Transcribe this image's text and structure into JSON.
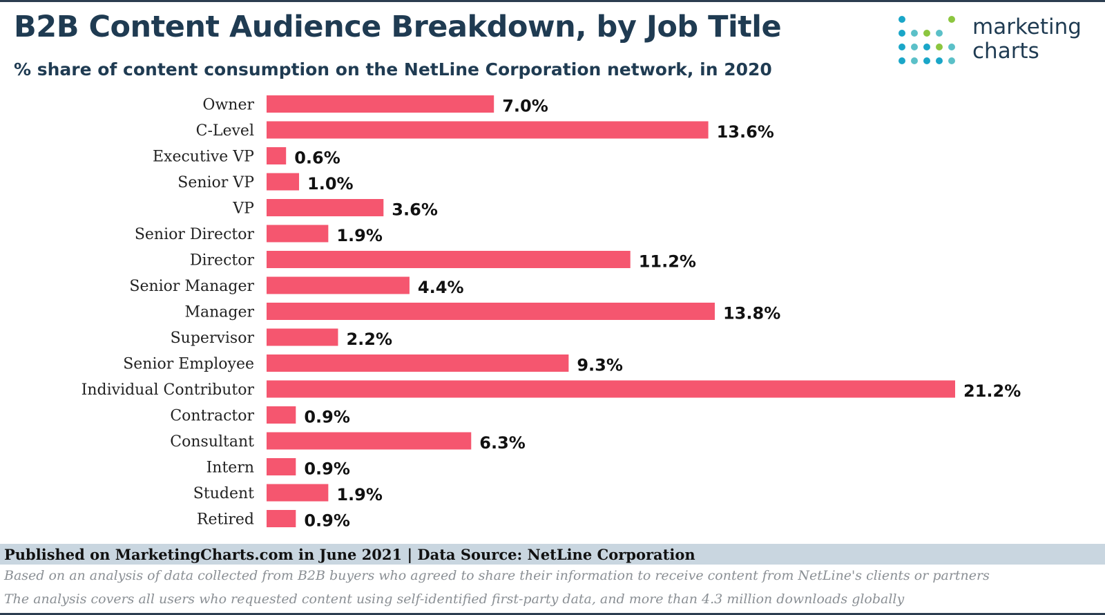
{
  "header": {
    "title": "B2B Content Audience Breakdown, by Job Title",
    "subtitle": "% share of content consumption on the NetLine Corporation network, in 2020"
  },
  "logo": {
    "line1": "marketing",
    "line2": "charts"
  },
  "colors": {
    "bar": "#f5566f",
    "title": "#1f3b52",
    "label": "#222222",
    "value": "#111111",
    "footer_band": "#c9d6e0"
  },
  "chart_data": {
    "type": "bar",
    "orientation": "horizontal",
    "title": "B2B Content Audience Breakdown, by Job Title",
    "subtitle": "% share of content consumption on the NetLine Corporation network, in 2020",
    "xlabel": "",
    "ylabel": "",
    "value_suffix": "%",
    "xlim": [
      0,
      21.2
    ],
    "grid": false,
    "categories": [
      "Owner",
      "C-Level",
      "Executive VP",
      "Senior VP",
      "VP",
      "Senior Director",
      "Director",
      "Senior Manager",
      "Manager",
      "Supervisor",
      "Senior Employee",
      "Individual Contributor",
      "Contractor",
      "Consultant",
      "Intern",
      "Student",
      "Retired"
    ],
    "values": [
      7.0,
      13.6,
      0.6,
      1.0,
      3.6,
      1.9,
      11.2,
      4.4,
      13.8,
      2.2,
      9.3,
      21.2,
      0.9,
      6.3,
      0.9,
      1.9,
      0.9
    ],
    "value_labels": [
      "7.0%",
      "13.6%",
      "0.6%",
      "1.0%",
      "3.6%",
      "1.9%",
      "11.2%",
      "4.4%",
      "13.8%",
      "2.2%",
      "9.3%",
      "21.2%",
      "0.9%",
      "6.3%",
      "0.9%",
      "1.9%",
      "0.9%"
    ]
  },
  "footer": {
    "published": "Published on MarketingCharts.com in June 2021 | Data Source: NetLine Corporation",
    "note1": "Based on an analysis of data collected from B2B buyers who agreed to share their information to receive content from NetLine's clients or partners",
    "note2": "The analysis covers all users who requested content using self-identified first-party data, and more than 4.3 million downloads globally"
  }
}
